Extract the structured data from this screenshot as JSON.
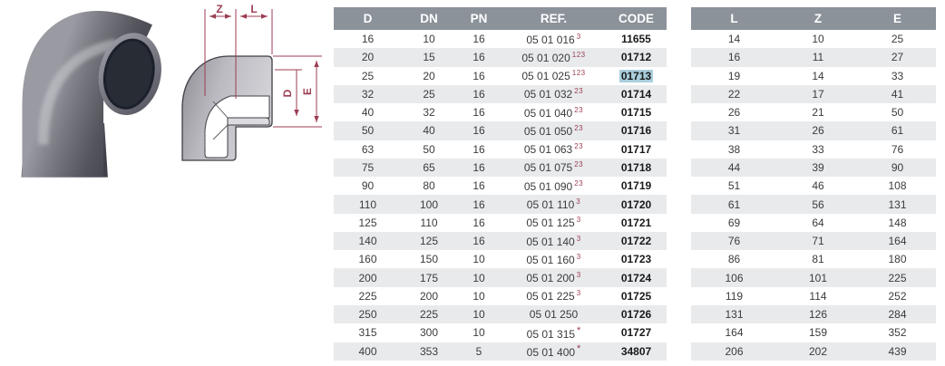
{
  "product": {
    "photo_name": "pvc-90-degree-elbow-photo",
    "drawing_name": "elbow-cross-section-drawing"
  },
  "drawing": {
    "label_z": "Z",
    "label_l": "L",
    "label_d": "D",
    "label_e": "E"
  },
  "spec_table": {
    "headers": [
      "D",
      "DN",
      "PN",
      "REF.",
      "CODE"
    ],
    "rows": [
      {
        "d": "16",
        "dn": "10",
        "pn": "16",
        "ref": "05 01 016",
        "ref_sup": "3",
        "code": "11655",
        "code_highlighted": false
      },
      {
        "d": "20",
        "dn": "15",
        "pn": "16",
        "ref": "05 01 020",
        "ref_sup": "123",
        "code": "01712",
        "code_highlighted": false
      },
      {
        "d": "25",
        "dn": "20",
        "pn": "16",
        "ref": "05 01 025",
        "ref_sup": "123",
        "code": "01713",
        "code_highlighted": true
      },
      {
        "d": "32",
        "dn": "25",
        "pn": "16",
        "ref": "05 01 032",
        "ref_sup": "23",
        "code": "01714",
        "code_highlighted": false
      },
      {
        "d": "40",
        "dn": "32",
        "pn": "16",
        "ref": "05 01 040",
        "ref_sup": "23",
        "code": "01715",
        "code_highlighted": false
      },
      {
        "d": "50",
        "dn": "40",
        "pn": "16",
        "ref": "05 01 050",
        "ref_sup": "23",
        "code": "01716",
        "code_highlighted": false
      },
      {
        "d": "63",
        "dn": "50",
        "pn": "16",
        "ref": "05 01 063",
        "ref_sup": "23",
        "code": "01717",
        "code_highlighted": false
      },
      {
        "d": "75",
        "dn": "65",
        "pn": "16",
        "ref": "05 01 075",
        "ref_sup": "23",
        "code": "01718",
        "code_highlighted": false
      },
      {
        "d": "90",
        "dn": "80",
        "pn": "16",
        "ref": "05 01 090",
        "ref_sup": "23",
        "code": "01719",
        "code_highlighted": false
      },
      {
        "d": "110",
        "dn": "100",
        "pn": "16",
        "ref": "05 01 110",
        "ref_sup": "3",
        "code": "01720",
        "code_highlighted": false
      },
      {
        "d": "125",
        "dn": "110",
        "pn": "16",
        "ref": "05 01 125",
        "ref_sup": "3",
        "code": "01721",
        "code_highlighted": false
      },
      {
        "d": "140",
        "dn": "125",
        "pn": "16",
        "ref": "05 01 140",
        "ref_sup": "3",
        "code": "01722",
        "code_highlighted": false
      },
      {
        "d": "160",
        "dn": "150",
        "pn": "10",
        "ref": "05 01 160",
        "ref_sup": "3",
        "code": "01723",
        "code_highlighted": false
      },
      {
        "d": "200",
        "dn": "175",
        "pn": "10",
        "ref": "05 01 200",
        "ref_sup": "3",
        "code": "01724",
        "code_highlighted": false
      },
      {
        "d": "225",
        "dn": "200",
        "pn": "10",
        "ref": "05 01 225",
        "ref_sup": "3",
        "code": "01725",
        "code_highlighted": false
      },
      {
        "d": "250",
        "dn": "225",
        "pn": "10",
        "ref": "05 01 250",
        "ref_sup": "",
        "code": "01726",
        "code_highlighted": false
      },
      {
        "d": "315",
        "dn": "300",
        "pn": "10",
        "ref": "05 01 315",
        "ref_sup": "*",
        "code": "01727",
        "code_highlighted": false
      },
      {
        "d": "400",
        "dn": "353",
        "pn": "5",
        "ref": "05 01 400",
        "ref_sup": "*",
        "code": "34807",
        "code_highlighted": false
      }
    ]
  },
  "dims_table": {
    "headers": [
      "L",
      "Z",
      "E"
    ],
    "rows": [
      {
        "l": "14",
        "z": "10",
        "e": "25"
      },
      {
        "l": "16",
        "z": "11",
        "e": "27"
      },
      {
        "l": "19",
        "z": "14",
        "e": "33"
      },
      {
        "l": "22",
        "z": "17",
        "e": "41"
      },
      {
        "l": "26",
        "z": "21",
        "e": "50"
      },
      {
        "l": "31",
        "z": "26",
        "e": "61"
      },
      {
        "l": "38",
        "z": "33",
        "e": "76"
      },
      {
        "l": "44",
        "z": "39",
        "e": "90"
      },
      {
        "l": "51",
        "z": "46",
        "e": "108"
      },
      {
        "l": "61",
        "z": "56",
        "e": "131"
      },
      {
        "l": "69",
        "z": "64",
        "e": "148"
      },
      {
        "l": "76",
        "z": "71",
        "e": "164"
      },
      {
        "l": "86",
        "z": "81",
        "e": "180"
      },
      {
        "l": "106",
        "z": "101",
        "e": "225"
      },
      {
        "l": "119",
        "z": "114",
        "e": "252"
      },
      {
        "l": "131",
        "z": "126",
        "e": "284"
      },
      {
        "l": "164",
        "z": "159",
        "e": "352"
      },
      {
        "l": "206",
        "z": "202",
        "e": "439"
      }
    ]
  },
  "colors": {
    "header_bg": "#8b929a",
    "stripe_bg": "#e8eaec",
    "accent_red": "#9c3e53",
    "highlight_blue": "#a9cedd",
    "body_text": "#3b3b3b"
  }
}
